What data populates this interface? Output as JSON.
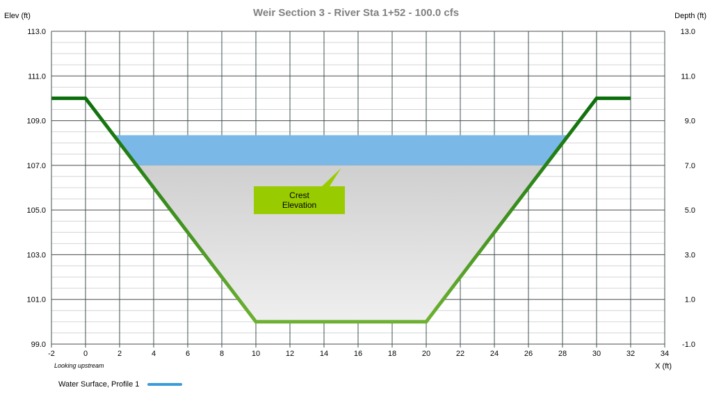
{
  "chart_data": {
    "type": "area",
    "title": "Weir Section 3 - River Sta 1+52 - 100.0 cfs",
    "ylabel_left": "Elev (ft)",
    "ylabel_right": "Depth (ft)",
    "xlabel": "X (ft)",
    "x_note": "Looking upstream",
    "xlim": [
      -2,
      34
    ],
    "ylim": [
      99,
      113
    ],
    "x_ticks": [
      -2,
      0,
      2,
      4,
      6,
      8,
      10,
      12,
      14,
      16,
      18,
      20,
      22,
      24,
      26,
      28,
      30,
      32,
      34
    ],
    "y_left_ticks": [
      {
        "value": 113,
        "label": "113.0"
      },
      {
        "value": 111,
        "label": "111.0"
      },
      {
        "value": 109,
        "label": "109.0"
      },
      {
        "value": 107,
        "label": "107.0"
      },
      {
        "value": 105,
        "label": "105.0"
      },
      {
        "value": 103,
        "label": "103.0"
      },
      {
        "value": 101,
        "label": "101.0"
      },
      {
        "value": 99,
        "label": "99.0"
      }
    ],
    "y_right_ticks": [
      {
        "value": 113,
        "label": "13.0"
      },
      {
        "value": 111,
        "label": "11.0"
      },
      {
        "value": 109,
        "label": "9.0"
      },
      {
        "value": 107,
        "label": "7.0"
      },
      {
        "value": 105,
        "label": "5.0"
      },
      {
        "value": 103,
        "label": "3.0"
      },
      {
        "value": 101,
        "label": "1.0"
      },
      {
        "value": 99,
        "label": "-1.0"
      }
    ],
    "channel": {
      "x": [
        -2,
        0,
        10,
        20,
        30,
        32
      ],
      "y": [
        110,
        110,
        100,
        100,
        110,
        110
      ]
    },
    "water_surface": {
      "name": "Water Surface,   Profile 1",
      "elevation": 108.35
    },
    "crest_elevation": 107.0,
    "annotation": {
      "text": "Crest\nElevation",
      "x": 15,
      "y": 107.0
    },
    "colors": {
      "water": "#7ab8e8",
      "channel_dark": "#0b6e0b",
      "channel_light": "#8ec63f",
      "annotation_bg": "#99cc00",
      "legend_line": "#3a9bd9"
    },
    "grid": true,
    "legend": "bottom-left"
  }
}
